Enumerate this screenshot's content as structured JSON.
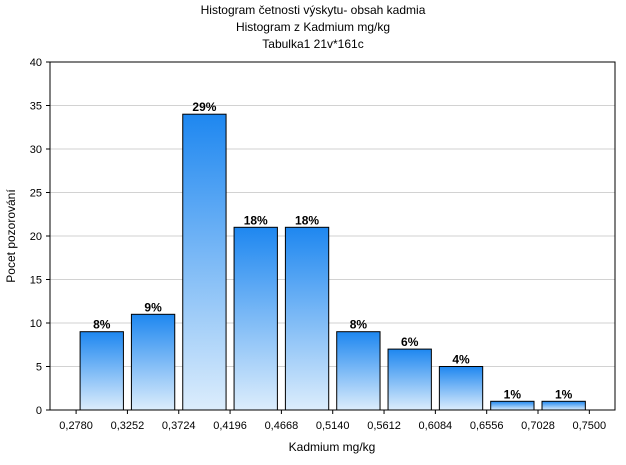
{
  "chart_data": {
    "type": "bar",
    "title": "Histogram četnosti výskytu- obsah kadmia",
    "subtitle": "Histogram z Kadmium mg/kg",
    "subtitle2": "Tabulka1 21v*161c",
    "xlabel": "Kadmium mg/kg",
    "ylabel": "Pocet pozorování",
    "ylim": [
      0,
      40
    ],
    "yticks": [
      0,
      5,
      10,
      15,
      20,
      25,
      30,
      35,
      40
    ],
    "xlim": [
      0.254,
      0.7736
    ],
    "xticks": [
      "0,2780",
      "0,3252",
      "0,3724",
      "0,4196",
      "0,4668",
      "0,5140",
      "0,5612",
      "0,6084",
      "0,6556",
      "0,7028",
      "0,7500"
    ],
    "grid": true,
    "bins": [
      {
        "from": 0.278,
        "to": 0.3252,
        "value": 9,
        "label": "8%"
      },
      {
        "from": 0.3252,
        "to": 0.3724,
        "value": 11,
        "label": "9%"
      },
      {
        "from": 0.3724,
        "to": 0.4196,
        "value": 34,
        "label": "29%"
      },
      {
        "from": 0.4196,
        "to": 0.4668,
        "value": 21,
        "label": "18%"
      },
      {
        "from": 0.4668,
        "to": 0.514,
        "value": 21,
        "label": "18%"
      },
      {
        "from": 0.514,
        "to": 0.5612,
        "value": 9,
        "label": "8%"
      },
      {
        "from": 0.5612,
        "to": 0.6084,
        "value": 7,
        "label": "6%"
      },
      {
        "from": 0.6084,
        "to": 0.6556,
        "value": 5,
        "label": "4%"
      },
      {
        "from": 0.6556,
        "to": 0.7028,
        "value": 1,
        "label": "1%"
      },
      {
        "from": 0.7028,
        "to": 0.75,
        "value": 1,
        "label": "1%"
      }
    ],
    "colors": {
      "bar_top": "#1e87f0",
      "bar_bottom": "#dcedfc",
      "bar_stroke": "#000000",
      "grid": "#d2d2d2"
    }
  }
}
